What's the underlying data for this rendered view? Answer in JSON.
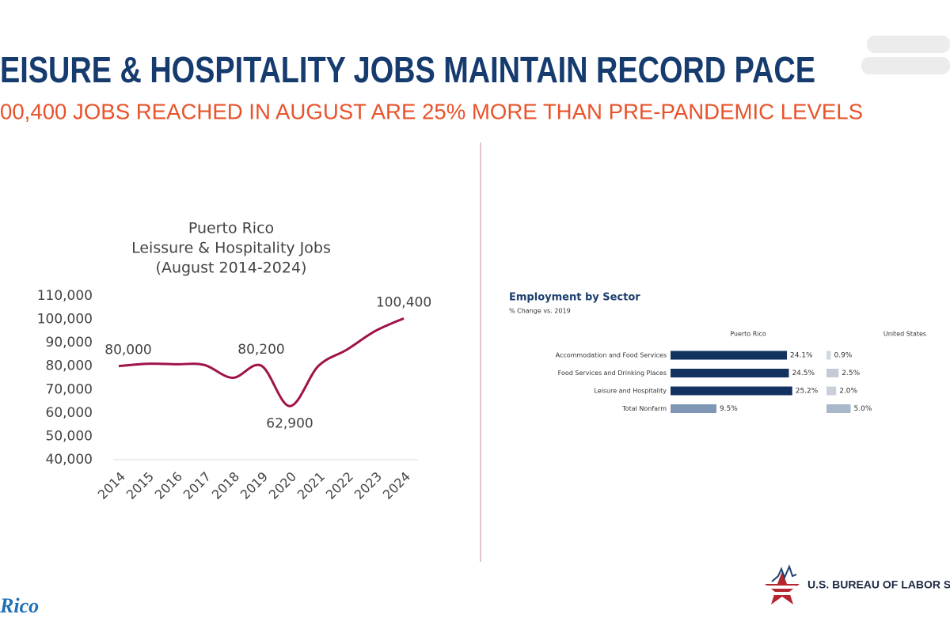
{
  "slide": {
    "title": "EISURE & HOSPITALITY JOBS MAINTAIN RECORD PACE",
    "subtitle": "00,400 JOBS REACHED IN AUGUST ARE 25% MORE THAN PRE-PANDEMIC LEVELS",
    "footer_logo": "U.S. BUREAU OF LABOR STA",
    "corner_logo": "Rico"
  },
  "chart_data": [
    {
      "type": "line",
      "title": [
        "Puerto Rico",
        "Leissure & Hospitality Jobs",
        "(August 2014-2024)"
      ],
      "categories": [
        "2014",
        "2015",
        "2016",
        "2017",
        "2018",
        "2019",
        "2020",
        "2021",
        "2022",
        "2023",
        "2024"
      ],
      "values": [
        80000,
        81000,
        80800,
        80500,
        75000,
        80200,
        62900,
        80000,
        87000,
        95000,
        100400
      ],
      "value_labels": [
        "80,000",
        null,
        null,
        null,
        null,
        "80,200",
        "62,900",
        null,
        null,
        null,
        "100,400"
      ],
      "color": "#a0134a",
      "ylim": [
        40000,
        110000
      ],
      "yticks": [
        {
          "value": 40000,
          "label": "40,000"
        },
        {
          "value": 50000,
          "label": "50,000"
        },
        {
          "value": 60000,
          "label": "60,000"
        },
        {
          "value": 70000,
          "label": "70,000"
        },
        {
          "value": 80000,
          "label": "80,000"
        },
        {
          "value": 90000,
          "label": "90,000"
        },
        {
          "value": 100000,
          "label": "100,000"
        },
        {
          "value": 110000,
          "label": "110,000"
        }
      ],
      "grid": false
    },
    {
      "type": "hbar",
      "title": "Employment by Sector",
      "subtitle": "% Change vs. 2019",
      "categories": [
        "Accommodation and Food Services",
        "Food Services and Drinking Places",
        "Leisure and Hospitality",
        "Total Nonfarm"
      ],
      "series": [
        {
          "name": "Puerto Rico",
          "colors": [
            "#12325f",
            "#12325f",
            "#12325f",
            "#7f96b5"
          ],
          "values": [
            24.1,
            24.5,
            25.2,
            9.5
          ],
          "value_labels": [
            "24.1%",
            "24.5%",
            "25.2%",
            "9.5%"
          ]
        },
        {
          "name": "United States",
          "colors": [
            "#d3d8df",
            "#c3cbd6",
            "#c9d0da",
            "#a8b7ca"
          ],
          "values": [
            0.9,
            2.5,
            2.0,
            5.0
          ],
          "value_labels": [
            "0.9%",
            "2.5%",
            "2.0%",
            "5.0%"
          ]
        }
      ]
    }
  ]
}
